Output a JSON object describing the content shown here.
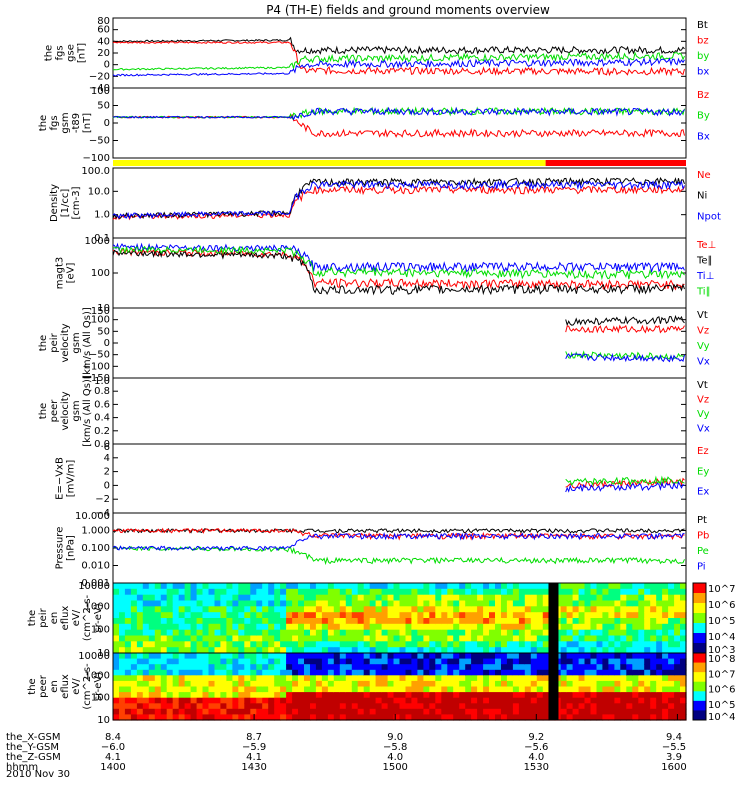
{
  "title": "P4 (TH-E) fields and ground moments overview",
  "date_label": "2010 Nov 30",
  "colors": {
    "black": "#000000",
    "red": "#ff0000",
    "green": "#00dd00",
    "blue": "#0000ff",
    "yellow": "#ffff00"
  },
  "chart_data": [
    {
      "type": "line",
      "ylabel": [
        "the",
        "fgs",
        "gse",
        "[nT]"
      ],
      "yticks": [
        "80",
        "60",
        "40",
        "20",
        "0",
        "−20",
        "−40"
      ],
      "ylim": [
        -40,
        80
      ],
      "series": [
        {
          "name": "Bt",
          "color": "black",
          "segments": [
            [
              [
                0,
                40
              ],
              [
                0.31,
                42
              ],
              [
                0.32,
                25
              ],
              [
                1,
                25
              ]
            ]
          ]
        },
        {
          "name": "bz",
          "color": "red",
          "segments": [
            [
              [
                0,
                38
              ],
              [
                0.31,
                38
              ],
              [
                0.33,
                -10
              ],
              [
                1,
                -12
              ]
            ]
          ]
        },
        {
          "name": "by",
          "color": "green",
          "segments": [
            [
              [
                0,
                -8
              ],
              [
                0.31,
                -5
              ],
              [
                0.33,
                10
              ],
              [
                1,
                15
              ]
            ]
          ]
        },
        {
          "name": "bx",
          "color": "blue",
          "segments": [
            [
              [
                0,
                -18
              ],
              [
                0.31,
                -15
              ],
              [
                0.33,
                0
              ],
              [
                1,
                5
              ]
            ]
          ]
        }
      ]
    },
    {
      "type": "line",
      "ylabel": [
        "the",
        "fgs",
        "gsm",
        "-t89",
        "[nT]"
      ],
      "yticks": [
        "100",
        "50",
        "0",
        "−50",
        "−100"
      ],
      "ylim": [
        -140,
        100
      ],
      "series": [
        {
          "name": "Bz",
          "color": "red",
          "segments": [
            [
              [
                0,
                0
              ],
              [
                0.31,
                0
              ],
              [
                0.35,
                -55
              ],
              [
                1,
                -55
              ]
            ]
          ]
        },
        {
          "name": "By",
          "color": "green",
          "segments": [
            [
              [
                0,
                0
              ],
              [
                0.31,
                0
              ],
              [
                0.35,
                20
              ],
              [
                1,
                20
              ]
            ]
          ]
        },
        {
          "name": "Bx",
          "color": "blue",
          "segments": [
            [
              [
                0,
                0
              ],
              [
                0.31,
                0
              ],
              [
                0.35,
                20
              ],
              [
                1,
                18
              ]
            ]
          ]
        }
      ]
    },
    {
      "type": "line",
      "log": true,
      "ylabel": [
        "Density",
        "[1/cc]",
        "[cm-3]"
      ],
      "yticks": [
        "100.0",
        "10.0",
        "1.0",
        "0.1"
      ],
      "ylim": [
        0.1,
        100
      ],
      "series": [
        {
          "name": "Ne",
          "color": "red",
          "segments": [
            [
              [
                0,
                0.8
              ],
              [
                0.31,
                1
              ],
              [
                0.35,
                12
              ],
              [
                1,
                12
              ]
            ]
          ]
        },
        {
          "name": "Ni",
          "color": "black",
          "segments": [
            [
              [
                0,
                0.9
              ],
              [
                0.31,
                1.2
              ],
              [
                0.35,
                25
              ],
              [
                1,
                28
              ]
            ]
          ]
        },
        {
          "name": "Npot",
          "color": "blue",
          "segments": [
            [
              [
                0,
                0.9
              ],
              [
                0.31,
                1.2
              ],
              [
                0.35,
                20
              ],
              [
                1,
                20
              ]
            ]
          ]
        }
      ]
    },
    {
      "type": "line",
      "log": true,
      "ylabel": [
        "magt3",
        "[eV]"
      ],
      "yticks": [
        "1000",
        "100",
        "10"
      ],
      "ylim": [
        10,
        3000
      ],
      "series": [
        {
          "name": "Te⊥",
          "color": "red",
          "segments": [
            [
              [
                0,
                1000
              ],
              [
                0.31,
                800
              ],
              [
                0.35,
                80
              ],
              [
                1,
                70
              ]
            ]
          ]
        },
        {
          "name": "Te∥",
          "color": "black",
          "segments": [
            [
              [
                0,
                900
              ],
              [
                0.31,
                700
              ],
              [
                0.35,
                45
              ],
              [
                1,
                50
              ]
            ]
          ]
        },
        {
          "name": "Ti⊥",
          "color": "blue",
          "segments": [
            [
              [
                0,
                1500
              ],
              [
                0.31,
                1300
              ],
              [
                0.35,
                300
              ],
              [
                1,
                300
              ]
            ]
          ]
        },
        {
          "name": "Ti∥",
          "color": "green",
          "segments": [
            [
              [
                0,
                1200
              ],
              [
                0.31,
                1100
              ],
              [
                0.35,
                200
              ],
              [
                1,
                150
              ]
            ]
          ]
        }
      ]
    },
    {
      "type": "line",
      "ylabel": [
        "the",
        "peir",
        "velocity",
        "gsm",
        "[km/s (All Qs)]"
      ],
      "yticks": [
        "150",
        "100",
        "50",
        "0",
        "−50",
        "−100",
        "−150"
      ],
      "ylim": [
        -150,
        150
      ],
      "series": [
        {
          "name": "Vt",
          "color": "black",
          "segments": [
            [
              [
                0.79,
                90
              ],
              [
                1,
                100
              ]
            ]
          ]
        },
        {
          "name": "Vz",
          "color": "red",
          "segments": [
            [
              [
                0.79,
                60
              ],
              [
                1,
                60
              ]
            ]
          ]
        },
        {
          "name": "Vy",
          "color": "green",
          "segments": [
            [
              [
                0.79,
                -50
              ],
              [
                1,
                -60
              ]
            ]
          ]
        },
        {
          "name": "Vx",
          "color": "blue",
          "segments": [
            [
              [
                0.79,
                -60
              ],
              [
                1,
                -65
              ]
            ]
          ]
        }
      ]
    },
    {
      "type": "line",
      "ylabel": [
        "the",
        "peer",
        "velocity",
        "gsm",
        "[km/s (All Qs)]"
      ],
      "yticks": [
        "1.0",
        "0.8",
        "0.6",
        "0.4",
        "0.2",
        "0.0"
      ],
      "ylim": [
        0,
        1
      ],
      "series": [
        {
          "name": "Vt",
          "color": "black",
          "segments": []
        },
        {
          "name": "Vz",
          "color": "red",
          "segments": []
        },
        {
          "name": "Vy",
          "color": "green",
          "segments": []
        },
        {
          "name": "Vx",
          "color": "blue",
          "segments": []
        }
      ]
    },
    {
      "type": "line",
      "ylabel": [
        "E=−VxB",
        "[mV/m]"
      ],
      "yticks": [
        "6",
        "4",
        "2",
        "0",
        "−2",
        "−4"
      ],
      "ylim": [
        -4,
        6
      ],
      "series": [
        {
          "name": "Ez",
          "color": "red",
          "segments": [
            [
              [
                0.79,
                0
              ],
              [
                1,
                0.5
              ]
            ]
          ]
        },
        {
          "name": "Ey",
          "color": "green",
          "segments": [
            [
              [
                0.79,
                0.5
              ],
              [
                1,
                0.8
              ]
            ]
          ]
        },
        {
          "name": "Ex",
          "color": "blue",
          "segments": [
            [
              [
                0.79,
                -0.5
              ],
              [
                1,
                0
              ]
            ]
          ]
        }
      ]
    },
    {
      "type": "line",
      "log": true,
      "ylabel": [
        "Pressure",
        "[nPa]"
      ],
      "yticks": [
        "10.000",
        "1.000",
        "0.100",
        "0.010",
        "0.001"
      ],
      "ylim": [
        0.001,
        10
      ],
      "series": [
        {
          "name": "Pt",
          "color": "black",
          "segments": [
            [
              [
                0,
                1.0
              ],
              [
                1,
                1.0
              ]
            ]
          ]
        },
        {
          "name": "Pb",
          "color": "red",
          "segments": [
            [
              [
                0,
                1.0
              ],
              [
                0.31,
                1.0
              ],
              [
                0.35,
                0.5
              ],
              [
                1,
                0.5
              ]
            ]
          ]
        },
        {
          "name": "Pe",
          "color": "green",
          "segments": [
            [
              [
                0,
                0.1
              ],
              [
                0.31,
                0.08
              ],
              [
                0.35,
                0.02
              ],
              [
                1,
                0.02
              ]
            ]
          ]
        },
        {
          "name": "Pi",
          "color": "blue",
          "segments": [
            [
              [
                0,
                0.1
              ],
              [
                0.31,
                0.1
              ],
              [
                0.35,
                0.5
              ],
              [
                1,
                0.5
              ]
            ]
          ]
        }
      ]
    },
    {
      "type": "heatmap",
      "ylabel": [
        "the",
        "peir",
        "en",
        "eflux",
        "eV/",
        "(cm^2-s-",
        "sr-eV)"
      ],
      "yticks": [
        "10000",
        "1000",
        "100",
        "10"
      ],
      "colorbar_ticks": [
        "10^7",
        "10^6",
        "10^5",
        "10^4",
        "10^3"
      ]
    },
    {
      "type": "heatmap",
      "ylabel": [
        "the",
        "peer",
        "en",
        "eflux",
        "eV/",
        "(cm^2-s-",
        "sr-eV)"
      ],
      "yticks": [
        "10000",
        "1000",
        "100",
        "10"
      ],
      "colorbar_ticks": [
        "10^8",
        "10^7",
        "10^6",
        "10^5",
        "10^4"
      ]
    }
  ],
  "x_axis": {
    "row_labels": [
      "the_X-GSM",
      "the_Y-GSM",
      "the_Z-GSM",
      "hhmm"
    ],
    "ticks": [
      {
        "rows": [
          "8.4",
          "−6.0",
          "4.1",
          "1400"
        ]
      },
      {
        "rows": [
          "8.7",
          "−5.9",
          "4.1",
          "1430"
        ]
      },
      {
        "rows": [
          "9.0",
          "−5.8",
          "4.0",
          "1500"
        ]
      },
      {
        "rows": [
          "9.2",
          "−5.6",
          "4.0",
          "1530"
        ]
      },
      {
        "rows": [
          "9.4",
          "−5.5",
          "3.9",
          "1600"
        ]
      }
    ]
  }
}
